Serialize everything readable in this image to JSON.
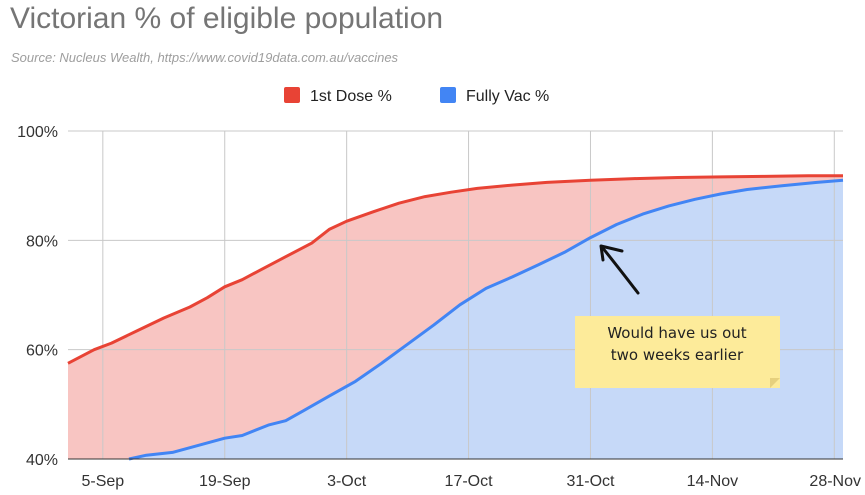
{
  "header": {
    "title": "Victorian % of eligible population",
    "subtitle": "Source: Nucleus Wealth, https://www.covid19data.com.au/vaccines"
  },
  "annotation": {
    "line1": "Would have us out",
    "line2": "two weeks earlier"
  },
  "colors": {
    "first_dose": "#e84335",
    "first_dose_fill": "#f8c5c2",
    "fully_vac": "#4285f4",
    "fully_vac_fill": "#c6d9f8",
    "grid": "#c8c8c8",
    "note": "#fdeb9a"
  },
  "chart_data": {
    "type": "area",
    "title": "Victorian % of eligible population",
    "subtitle": "Source: Nucleus Wealth, https://www.covid19data.com.au/vaccines",
    "xlabel": "",
    "ylabel": "",
    "x_ticks": [
      "5-Sep",
      "19-Sep",
      "3-Oct",
      "17-Oct",
      "31-Oct",
      "14-Nov",
      "28-Nov"
    ],
    "x_tick_dates": [
      "2021-09-05",
      "2021-09-19",
      "2021-10-03",
      "2021-10-17",
      "2021-10-31",
      "2021-11-14",
      "2021-11-28"
    ],
    "xlim": [
      "2021-09-01",
      "2021-11-29"
    ],
    "y_ticks": [
      "40%",
      "60%",
      "80%",
      "100%"
    ],
    "y_tick_values": [
      40,
      60,
      80,
      100
    ],
    "ylim": [
      40,
      100
    ],
    "grid": true,
    "legend_position": "top-center",
    "series": [
      {
        "name": "1st Dose %",
        "x": [
          "2021-09-01",
          "2021-09-04",
          "2021-09-06",
          "2021-09-09",
          "2021-09-12",
          "2021-09-15",
          "2021-09-17",
          "2021-09-19",
          "2021-09-21",
          "2021-09-23",
          "2021-09-26",
          "2021-09-29",
          "2021-10-01",
          "2021-10-03",
          "2021-10-06",
          "2021-10-09",
          "2021-10-12",
          "2021-10-15",
          "2021-10-18",
          "2021-10-22",
          "2021-10-26",
          "2021-10-31",
          "2021-11-05",
          "2021-11-10",
          "2021-11-15",
          "2021-11-20",
          "2021-11-25",
          "2021-11-29"
        ],
        "values": [
          57.5,
          60.0,
          61.2,
          63.5,
          65.8,
          67.8,
          69.5,
          71.5,
          72.8,
          74.5,
          77.0,
          79.5,
          82.0,
          83.5,
          85.2,
          86.8,
          88.0,
          88.8,
          89.5,
          90.1,
          90.6,
          91.0,
          91.3,
          91.5,
          91.6,
          91.7,
          91.8,
          91.8
        ]
      },
      {
        "name": "Fully Vac %",
        "x": [
          "2021-09-08",
          "2021-09-10",
          "2021-09-13",
          "2021-09-16",
          "2021-09-19",
          "2021-09-21",
          "2021-09-24",
          "2021-09-26",
          "2021-09-28",
          "2021-10-01",
          "2021-10-04",
          "2021-10-07",
          "2021-10-10",
          "2021-10-13",
          "2021-10-16",
          "2021-10-19",
          "2021-10-22",
          "2021-10-25",
          "2021-10-28",
          "2021-10-31",
          "2021-11-03",
          "2021-11-06",
          "2021-11-09",
          "2021-11-12",
          "2021-11-15",
          "2021-11-18",
          "2021-11-22",
          "2021-11-26",
          "2021-11-29"
        ],
        "values": [
          40.0,
          40.7,
          41.2,
          42.5,
          43.8,
          44.3,
          46.2,
          47.0,
          48.8,
          51.5,
          54.2,
          57.5,
          61.0,
          64.5,
          68.2,
          71.2,
          73.3,
          75.5,
          77.8,
          80.5,
          82.9,
          84.8,
          86.3,
          87.5,
          88.5,
          89.3,
          90.0,
          90.6,
          91.0
        ]
      }
    ]
  }
}
